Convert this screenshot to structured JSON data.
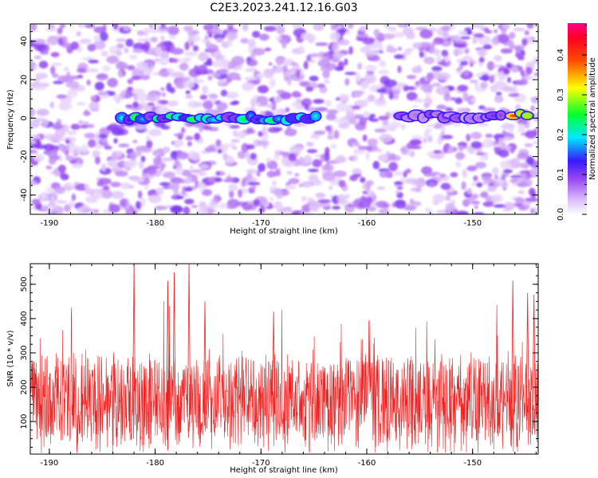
{
  "title": "C2E3.2023.241.12.16.G03",
  "colors": {
    "snr_line": "#ee2222",
    "axes": "#000000"
  },
  "chart_data": [
    {
      "type": "heatmap",
      "xlabel": "Height of straight line (km)",
      "ylabel": "Frequency (Hz)",
      "xlim": [
        -191.8,
        -143.8
      ],
      "ylim": [
        -50,
        49
      ],
      "xticks": [
        -190,
        -180,
        -170,
        -160,
        -150
      ],
      "yticks": [
        -40,
        -20,
        0,
        20,
        40
      ],
      "colorbar": {
        "label": "Normalized spectral amplitude",
        "range": [
          0.0,
          0.48
        ],
        "ticks": [
          0.0,
          0.1,
          0.2,
          0.3,
          0.4
        ],
        "colormap": "rainbow (white → violet → blue → cyan → green → yellow → red → magenta)"
      },
      "features": [
        {
          "x_range": [
            -183.5,
            -164.5
          ],
          "frequency": 0,
          "amplitude": [
            0.1,
            0.28
          ]
        },
        {
          "x_range": [
            -157.0,
            -147.0
          ],
          "frequency": 1,
          "amplitude": [
            0.05,
            0.12
          ]
        },
        {
          "x_range": [
            -146.5,
            -144.5
          ],
          "frequency": 2,
          "amplitude": [
            0.3,
            0.45
          ]
        }
      ]
    },
    {
      "type": "line",
      "xlabel": "Height of straight line (km)",
      "ylabel": "SNR (10 * v/v)",
      "xlim": [
        -191.8,
        -143.8
      ],
      "ylim": [
        5,
        560
      ],
      "xticks": [
        -190,
        -180,
        -170,
        -160,
        -150
      ],
      "yticks": [
        100,
        200,
        300,
        400,
        500
      ],
      "series": [
        {
          "summary": {
            "typical_min": 50,
            "typical_max": 330,
            "mean": 160,
            "peak": 560
          },
          "peaks": [
            {
              "x": -182.0,
              "y": 560
            },
            {
              "x": -176.8,
              "y": 560
            },
            {
              "x": -178.2,
              "y": 535
            },
            {
              "x": -178.8,
              "y": 510
            },
            {
              "x": -175.3,
              "y": 450
            },
            {
              "x": -168.8,
              "y": 420
            },
            {
              "x": -146.2,
              "y": 510
            },
            {
              "x": -144.8,
              "y": 475
            },
            {
              "x": -144.2,
              "y": 470
            }
          ]
        }
      ]
    }
  ]
}
